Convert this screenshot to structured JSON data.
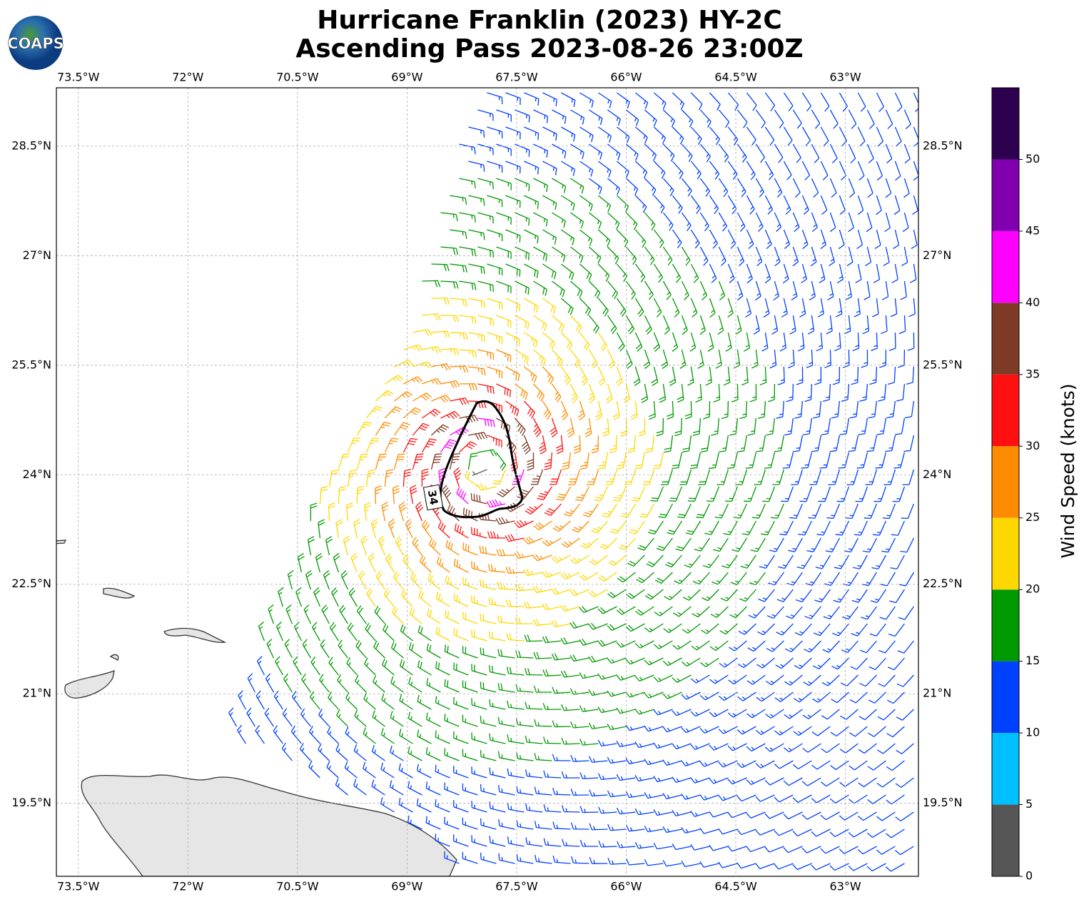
{
  "chart_data": {
    "type": "wind-barb-map",
    "title": "Hurricane Franklin (2023) HY-2C",
    "subtitle": "Ascending Pass 2023-08-26 23:00Z",
    "logo": "COAPS",
    "xlim": [
      -73.8,
      -62.0
    ],
    "ylim": [
      18.5,
      29.3
    ],
    "xticks": [
      {
        "value": -73.5,
        "label": "73.5°W"
      },
      {
        "value": -72,
        "label": "72°W"
      },
      {
        "value": -70.5,
        "label": "70.5°W"
      },
      {
        "value": -69,
        "label": "69°W"
      },
      {
        "value": -67.5,
        "label": "67.5°W"
      },
      {
        "value": -66,
        "label": "66°W"
      },
      {
        "value": -64.5,
        "label": "64.5°W"
      },
      {
        "value": -63,
        "label": "63°W"
      }
    ],
    "yticks": [
      {
        "value": 19.5,
        "label": "19.5°N"
      },
      {
        "value": 21,
        "label": "21°N"
      },
      {
        "value": 22.5,
        "label": "22.5°N"
      },
      {
        "value": 24,
        "label": "24°N"
      },
      {
        "value": 25.5,
        "label": "25.5°N"
      },
      {
        "value": 27,
        "label": "27°N"
      },
      {
        "value": 28.5,
        "label": "28.5°N"
      }
    ],
    "grid": true,
    "contour_label": "34",
    "colorbar": {
      "label": "Wind Speed (knots)",
      "lim": [
        0,
        55
      ],
      "bounds": [
        0,
        5,
        10,
        15,
        20,
        25,
        30,
        35,
        40,
        45,
        50,
        55
      ],
      "colors": [
        "#555555",
        "#00bfff",
        "#0040ff",
        "#009900",
        "#ffd700",
        "#ff8c00",
        "#ff1010",
        "#7f3a26",
        "#ff00ff",
        "#8000b0",
        "#2d0050"
      ],
      "ticks": [
        0,
        5,
        10,
        15,
        20,
        25,
        30,
        35,
        40,
        45,
        50
      ]
    }
  }
}
